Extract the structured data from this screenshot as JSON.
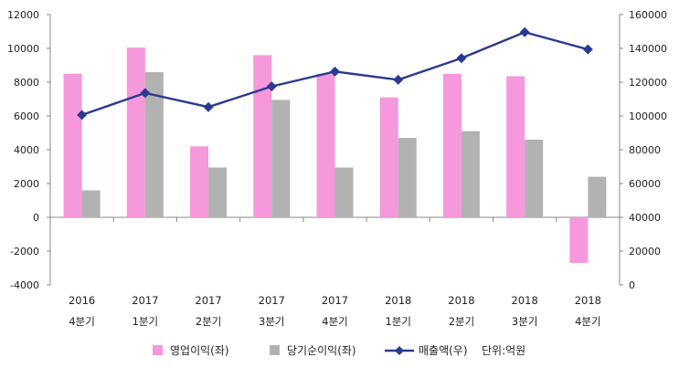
{
  "chart_data": {
    "type": "bar",
    "categories": [
      {
        "year": "2016",
        "quarter": "4분기"
      },
      {
        "year": "2017",
        "quarter": "1분기"
      },
      {
        "year": "2017",
        "quarter": "2분기"
      },
      {
        "year": "2017",
        "quarter": "3분기"
      },
      {
        "year": "2017",
        "quarter": "4분기"
      },
      {
        "year": "2018",
        "quarter": "1분기"
      },
      {
        "year": "2018",
        "quarter": "2분기"
      },
      {
        "year": "2018",
        "quarter": "3분기"
      },
      {
        "year": "2018",
        "quarter": "4분기"
      }
    ],
    "series": [
      {
        "name": "영업이익(좌)",
        "type": "bar",
        "axis": "left",
        "color": "#f598dc",
        "values": [
          8500,
          10050,
          4200,
          9600,
          8500,
          7100,
          8500,
          8350,
          -2700
        ]
      },
      {
        "name": "당기순이익(좌)",
        "type": "bar",
        "axis": "left",
        "color": "#b2b2b2",
        "values": [
          1600,
          8600,
          2950,
          6950,
          2950,
          4700,
          5100,
          4600,
          2400
        ]
      },
      {
        "name": "매출액(우)",
        "type": "line",
        "axis": "right",
        "color": "#2b3a91",
        "values": [
          100600,
          113600,
          105300,
          117500,
          126300,
          121400,
          134200,
          149600,
          139400
        ]
      }
    ],
    "left_axis": {
      "min": -4000,
      "max": 12000,
      "step": 2000,
      "ticks": [
        "-4000",
        "-2000",
        "0",
        "2000",
        "4000",
        "6000",
        "8000",
        "10000",
        "12000"
      ]
    },
    "right_axis": {
      "min": 0,
      "max": 160000,
      "step": 20000,
      "ticks": [
        "0",
        "20000",
        "40000",
        "60000",
        "80000",
        "100000",
        "120000",
        "140000",
        "160000"
      ]
    },
    "unit_note": "단위:억원",
    "legend_position": "bottom",
    "grid": false
  }
}
